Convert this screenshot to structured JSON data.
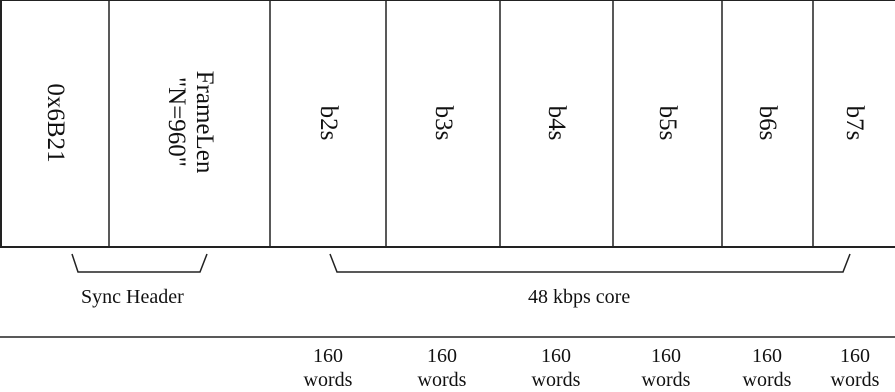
{
  "fields": [
    {
      "id": "sync",
      "lines": [
        "0x6B21"
      ]
    },
    {
      "id": "framelen",
      "lines": [
        "FrameLen",
        "\"N=960\""
      ]
    },
    {
      "id": "b2s",
      "lines": [
        "b2s"
      ]
    },
    {
      "id": "b3s",
      "lines": [
        "b3s"
      ]
    },
    {
      "id": "b4s",
      "lines": [
        "b4s"
      ]
    },
    {
      "id": "b5s",
      "lines": [
        "b5s"
      ]
    },
    {
      "id": "b6s",
      "lines": [
        "b6s"
      ]
    },
    {
      "id": "b7s",
      "lines": [
        "b7s"
      ]
    }
  ],
  "groups": {
    "sync_header": "Sync Header",
    "core": "48 kbps core"
  },
  "sizes": [
    {
      "field": "b2s",
      "value": "160",
      "unit": "words"
    },
    {
      "field": "b3s",
      "value": "160",
      "unit": "words"
    },
    {
      "field": "b4s",
      "value": "160",
      "unit": "words"
    },
    {
      "field": "b5s",
      "value": "160",
      "unit": "words"
    },
    {
      "field": "b6s",
      "value": "160",
      "unit": "words"
    },
    {
      "field": "b7s",
      "value": "160",
      "unit": "words"
    }
  ]
}
